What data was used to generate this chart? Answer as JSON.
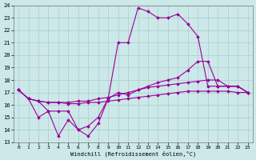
{
  "xlabel": "Windchill (Refroidissement éolien,°C)",
  "background_color": "#cce8e8",
  "grid_color": "#aacccc",
  "line_color": "#990099",
  "xlim": [
    -0.5,
    23.5
  ],
  "ylim": [
    13,
    24
  ],
  "yticks": [
    13,
    14,
    15,
    16,
    17,
    18,
    19,
    20,
    21,
    22,
    23,
    24
  ],
  "xticks": [
    0,
    1,
    2,
    3,
    4,
    5,
    6,
    7,
    8,
    9,
    10,
    11,
    12,
    13,
    14,
    15,
    16,
    17,
    18,
    19,
    20,
    21,
    22,
    23
  ],
  "series": [
    {
      "x": [
        0,
        1,
        2,
        3,
        4,
        5,
        6,
        7,
        8,
        9,
        10,
        11,
        12,
        13,
        14,
        15,
        16,
        17,
        18,
        19,
        20,
        21,
        22,
        23
      ],
      "y": [
        17.2,
        16.5,
        16.3,
        16.2,
        16.2,
        16.1,
        16.1,
        16.2,
        16.2,
        16.3,
        16.4,
        16.5,
        16.6,
        16.7,
        16.8,
        16.9,
        17.0,
        17.1,
        17.1,
        17.1,
        17.1,
        17.1,
        17.0,
        17.0
      ]
    },
    {
      "x": [
        0,
        1,
        2,
        3,
        4,
        5,
        6,
        7,
        8,
        9,
        10,
        11,
        12,
        13,
        14,
        15,
        16,
        17,
        18,
        19,
        20,
        21,
        22,
        23
      ],
      "y": [
        17.2,
        16.5,
        16.3,
        16.2,
        16.2,
        16.2,
        16.3,
        16.3,
        16.5,
        16.6,
        16.8,
        17.0,
        17.2,
        17.4,
        17.5,
        17.6,
        17.7,
        17.8,
        17.9,
        18.0,
        18.0,
        17.5,
        17.5,
        17.0
      ]
    },
    {
      "x": [
        0,
        1,
        2,
        3,
        4,
        5,
        6,
        7,
        8,
        9,
        10,
        11,
        12,
        13,
        14,
        15,
        16,
        17,
        18,
        19,
        20,
        21,
        22,
        23
      ],
      "y": [
        17.2,
        16.5,
        16.3,
        15.5,
        15.5,
        15.5,
        14.0,
        14.3,
        15.0,
        16.5,
        21.0,
        21.0,
        23.8,
        23.5,
        23.0,
        23.0,
        23.3,
        22.5,
        21.5,
        17.5,
        17.5,
        17.5,
        17.5,
        17.0
      ]
    },
    {
      "x": [
        0,
        1,
        2,
        3,
        4,
        5,
        6,
        7,
        8,
        9,
        10,
        11,
        12,
        13,
        14,
        15,
        16,
        17,
        18,
        19,
        20,
        21,
        22,
        23
      ],
      "y": [
        17.2,
        16.5,
        15.0,
        15.5,
        13.5,
        14.8,
        14.0,
        13.5,
        14.5,
        16.5,
        17.0,
        16.8,
        17.2,
        17.5,
        17.8,
        18.0,
        18.2,
        18.8,
        19.5,
        19.5,
        17.5,
        17.5,
        17.5,
        17.0
      ]
    }
  ]
}
